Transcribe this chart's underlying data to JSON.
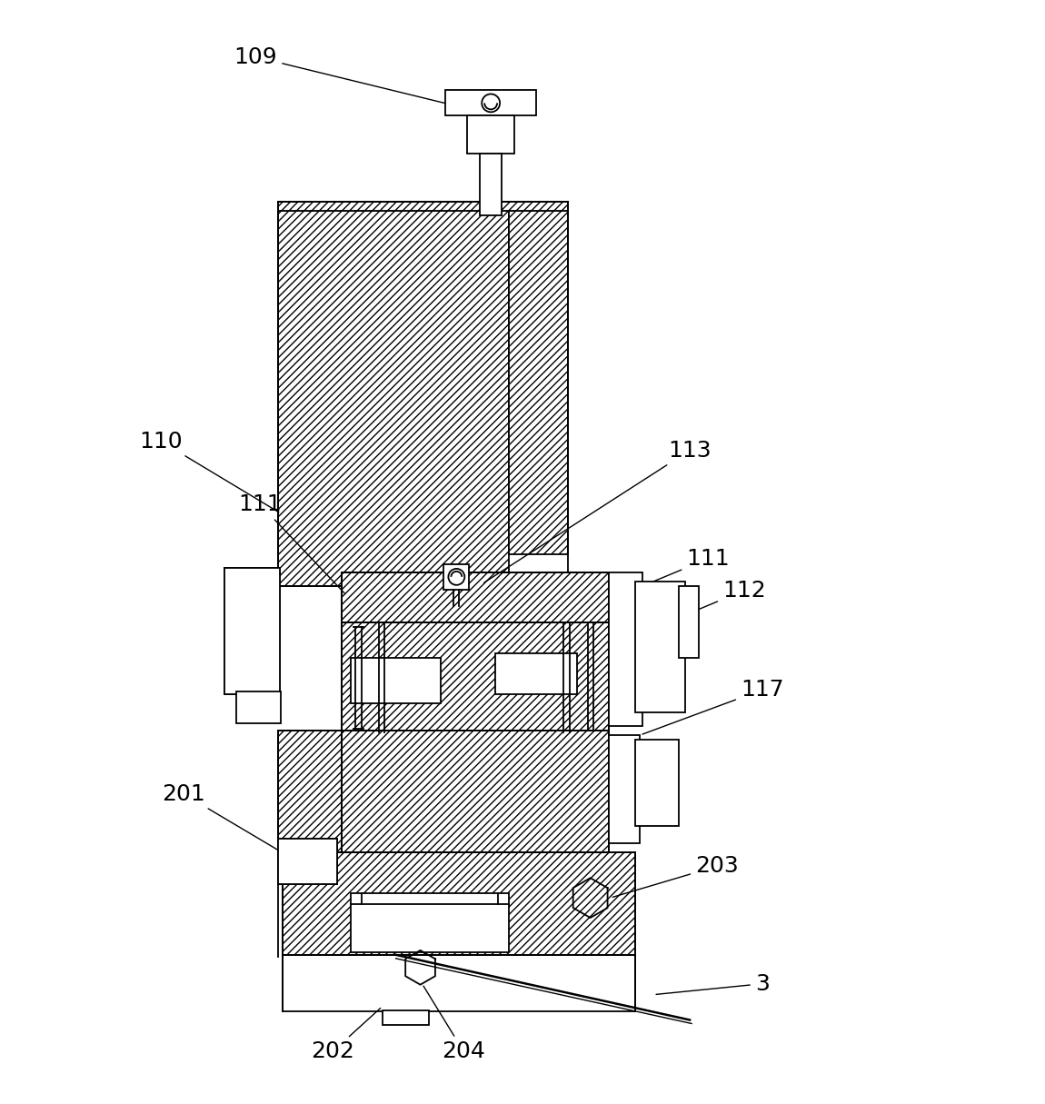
{
  "bg_color": "#ffffff",
  "line_color": "#000000",
  "figsize": [
    11.5,
    12.15
  ],
  "dpi": 100,
  "label_fontsize": 18
}
